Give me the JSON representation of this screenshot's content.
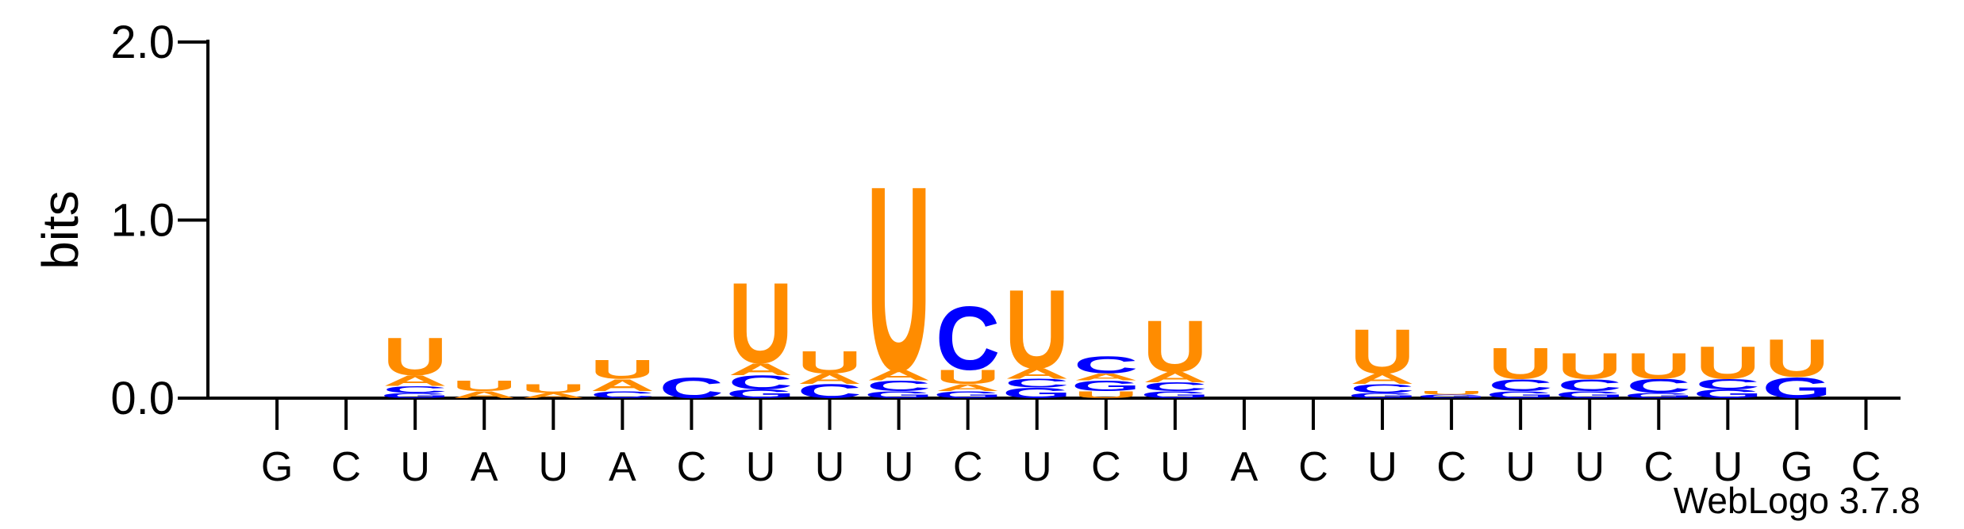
{
  "chart_data": {
    "type": "sequence-logo",
    "ylabel": "bits",
    "ylim": [
      0,
      2.0
    ],
    "yticks": [
      "0.0",
      "1.0",
      "2.0"
    ],
    "credit": "WebLogo 3.7.8",
    "colors": {
      "U": "#ff8c00",
      "A": "#ff8c00",
      "C": "#0000ff",
      "G": "#0000ff"
    },
    "positions": [
      {
        "label": "G",
        "stack": []
      },
      {
        "label": "C",
        "stack": []
      },
      {
        "label": "U",
        "stack": [
          [
            "G",
            0.03
          ],
          [
            "C",
            0.04
          ],
          [
            "A",
            0.06
          ],
          [
            "U",
            0.22
          ]
        ]
      },
      {
        "label": "A",
        "stack": [
          [
            "A",
            0.04
          ],
          [
            "U",
            0.06
          ]
        ]
      },
      {
        "label": "U",
        "stack": [
          [
            "A",
            0.03
          ],
          [
            "U",
            0.05
          ]
        ]
      },
      {
        "label": "A",
        "stack": [
          [
            "C",
            0.04
          ],
          [
            "A",
            0.07
          ],
          [
            "U",
            0.11
          ]
        ]
      },
      {
        "label": "C",
        "stack": [
          [
            "C",
            0.12
          ]
        ]
      },
      {
        "label": "U",
        "stack": [
          [
            "G",
            0.05
          ],
          [
            "C",
            0.08
          ],
          [
            "A",
            0.07
          ],
          [
            "U",
            0.47
          ]
        ]
      },
      {
        "label": "U",
        "stack": [
          [
            "C",
            0.08
          ],
          [
            "A",
            0.06
          ],
          [
            "U",
            0.13
          ]
        ]
      },
      {
        "label": "U",
        "stack": [
          [
            "G",
            0.04
          ],
          [
            "C",
            0.06
          ],
          [
            "A",
            0.06
          ],
          [
            "U",
            1.08
          ]
        ]
      },
      {
        "label": "C",
        "stack": [
          [
            "G",
            0.04
          ],
          [
            "A",
            0.04
          ],
          [
            "U",
            0.08
          ],
          [
            "C",
            0.37
          ]
        ]
      },
      {
        "label": "U",
        "stack": [
          [
            "G",
            0.06
          ],
          [
            "C",
            0.05
          ],
          [
            "A",
            0.06
          ],
          [
            "U",
            0.46
          ]
        ]
      },
      {
        "label": "C",
        "stack": [
          [
            "U",
            0.04
          ],
          [
            "G",
            0.06
          ],
          [
            "A",
            0.04
          ],
          [
            "C",
            0.1
          ]
        ]
      },
      {
        "label": "U",
        "stack": [
          [
            "G",
            0.04
          ],
          [
            "C",
            0.05
          ],
          [
            "A",
            0.06
          ],
          [
            "U",
            0.3
          ]
        ]
      },
      {
        "label": "A",
        "stack": []
      },
      {
        "label": "C",
        "stack": []
      },
      {
        "label": "U",
        "stack": [
          [
            "G",
            0.03
          ],
          [
            "C",
            0.05
          ],
          [
            "A",
            0.06
          ],
          [
            "U",
            0.26
          ]
        ]
      },
      {
        "label": "C",
        "stack": [
          [
            "G",
            0.02
          ],
          [
            "U",
            0.02
          ]
        ]
      },
      {
        "label": "U",
        "stack": [
          [
            "G",
            0.04
          ],
          [
            "C",
            0.07
          ],
          [
            "U",
            0.18
          ]
        ]
      },
      {
        "label": "U",
        "stack": [
          [
            "G",
            0.04
          ],
          [
            "C",
            0.07
          ],
          [
            "U",
            0.15
          ]
        ]
      },
      {
        "label": "C",
        "stack": [
          [
            "G",
            0.03
          ],
          [
            "C",
            0.08
          ],
          [
            "U",
            0.15
          ]
        ]
      },
      {
        "label": "U",
        "stack": [
          [
            "G",
            0.05
          ],
          [
            "C",
            0.06
          ],
          [
            "U",
            0.19
          ]
        ]
      },
      {
        "label": "G",
        "stack": [
          [
            "G",
            0.12
          ],
          [
            "U",
            0.22
          ]
        ]
      },
      {
        "label": "C",
        "stack": []
      }
    ]
  }
}
